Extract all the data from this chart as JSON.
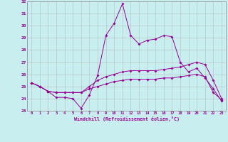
{
  "xlabel": "Windchill (Refroidissement éolien,°C)",
  "background_color": "#c8eef0",
  "line_color": "#990099",
  "grid_color": "#b0b0b0",
  "spine_color": "#888888",
  "xlim": [
    -0.5,
    23.5
  ],
  "ylim": [
    23,
    32
  ],
  "xticks": [
    0,
    1,
    2,
    3,
    4,
    5,
    6,
    7,
    8,
    9,
    10,
    11,
    12,
    13,
    14,
    15,
    16,
    17,
    18,
    19,
    20,
    21,
    22,
    23
  ],
  "yticks": [
    23,
    24,
    25,
    26,
    27,
    28,
    29,
    30,
    31,
    32
  ],
  "series1": [
    25.3,
    25.0,
    24.6,
    24.1,
    24.1,
    24.0,
    23.2,
    24.3,
    25.9,
    29.2,
    30.2,
    31.8,
    29.2,
    28.5,
    28.8,
    28.9,
    29.2,
    29.1,
    27.0,
    26.2,
    26.5,
    25.7,
    24.8,
    23.8
  ],
  "series2": [
    25.3,
    25.0,
    24.6,
    24.5,
    24.5,
    24.5,
    24.5,
    25.0,
    25.5,
    25.8,
    26.0,
    26.2,
    26.3,
    26.3,
    26.3,
    26.3,
    26.4,
    26.5,
    26.6,
    26.8,
    27.0,
    26.8,
    25.5,
    24.0
  ],
  "series3": [
    25.3,
    25.0,
    24.6,
    24.5,
    24.5,
    24.5,
    24.5,
    24.8,
    25.0,
    25.2,
    25.4,
    25.5,
    25.6,
    25.6,
    25.6,
    25.6,
    25.7,
    25.7,
    25.8,
    25.9,
    26.0,
    25.8,
    24.5,
    23.9
  ]
}
